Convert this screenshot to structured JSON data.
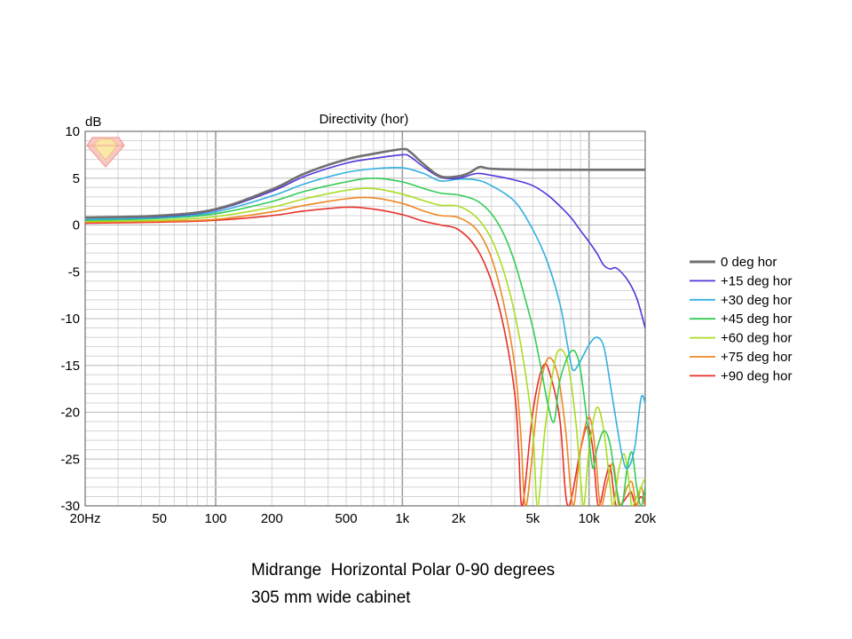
{
  "chart_data": {
    "type": "line",
    "title": "Directivity (hor)",
    "ylabel": "dB",
    "xscale": "log",
    "xlim": [
      20,
      20000
    ],
    "ylim": [
      -30,
      10
    ],
    "grid": true,
    "legend_position": "right",
    "x_ticks": [
      {
        "value": 20,
        "label": "20Hz"
      },
      {
        "value": 50,
        "label": "50"
      },
      {
        "value": 100,
        "label": "100"
      },
      {
        "value": 200,
        "label": "200"
      },
      {
        "value": 500,
        "label": "500"
      },
      {
        "value": 1000,
        "label": "1k"
      },
      {
        "value": 2000,
        "label": "2k"
      },
      {
        "value": 5000,
        "label": "5k"
      },
      {
        "value": 10000,
        "label": "10k"
      },
      {
        "value": 20000,
        "label": "20k"
      }
    ],
    "y_ticks": [
      10,
      5,
      0,
      -5,
      -10,
      -15,
      -20,
      -25,
      -30
    ],
    "series": [
      {
        "name": "0 deg hor",
        "color": "#707070",
        "points": [
          [
            20,
            0.8
          ],
          [
            50,
            1.0
          ],
          [
            100,
            1.7
          ],
          [
            200,
            3.8
          ],
          [
            300,
            5.5
          ],
          [
            500,
            7.0
          ],
          [
            700,
            7.6
          ],
          [
            1000,
            8.1
          ],
          [
            1100,
            7.8
          ],
          [
            1300,
            6.5
          ],
          [
            1600,
            5.2
          ],
          [
            2000,
            5.2
          ],
          [
            2300,
            5.6
          ],
          [
            2600,
            6.2
          ],
          [
            3000,
            6.0
          ],
          [
            5000,
            5.9
          ],
          [
            10000,
            5.9
          ],
          [
            20000,
            5.9
          ]
        ]
      },
      {
        "name": "+15 deg hor",
        "color": "#5533dd",
        "points": [
          [
            20,
            0.8
          ],
          [
            50,
            0.9
          ],
          [
            100,
            1.6
          ],
          [
            200,
            3.6
          ],
          [
            300,
            5.2
          ],
          [
            500,
            6.6
          ],
          [
            700,
            7.1
          ],
          [
            1000,
            7.5
          ],
          [
            1100,
            7.3
          ],
          [
            1300,
            6.2
          ],
          [
            1600,
            5.1
          ],
          [
            2000,
            5.0
          ],
          [
            2500,
            5.5
          ],
          [
            3000,
            5.3
          ],
          [
            4000,
            4.8
          ],
          [
            5000,
            4.2
          ],
          [
            6000,
            3.2
          ],
          [
            7000,
            2.0
          ],
          [
            8000,
            0.8
          ],
          [
            9000,
            -0.6
          ],
          [
            10000,
            -1.8
          ],
          [
            11000,
            -3.0
          ],
          [
            12000,
            -4.3
          ],
          [
            13000,
            -4.7
          ],
          [
            14000,
            -4.6
          ],
          [
            16000,
            -5.8
          ],
          [
            18000,
            -7.8
          ],
          [
            20000,
            -11.0
          ]
        ]
      },
      {
        "name": "+30 deg hor",
        "color": "#33b0e0",
        "points": [
          [
            20,
            0.6
          ],
          [
            50,
            0.8
          ],
          [
            100,
            1.4
          ],
          [
            200,
            3.1
          ],
          [
            300,
            4.4
          ],
          [
            500,
            5.6
          ],
          [
            700,
            6.0
          ],
          [
            1000,
            6.1
          ],
          [
            1300,
            5.5
          ],
          [
            1600,
            4.7
          ],
          [
            2000,
            4.9
          ],
          [
            2500,
            4.8
          ],
          [
            3000,
            4.2
          ],
          [
            4000,
            2.5
          ],
          [
            5000,
            -0.5
          ],
          [
            6000,
            -4.0
          ],
          [
            7000,
            -8.5
          ],
          [
            7700,
            -13.0
          ],
          [
            8200,
            -15.5
          ],
          [
            9000,
            -14.5
          ],
          [
            10000,
            -12.8
          ],
          [
            11000,
            -12.0
          ],
          [
            12000,
            -13.0
          ],
          [
            13000,
            -17.0
          ],
          [
            14000,
            -21.0
          ],
          [
            15000,
            -24.5
          ],
          [
            16000,
            -26.0
          ],
          [
            17500,
            -24.0
          ],
          [
            19000,
            -18.5
          ],
          [
            20000,
            -19.0
          ]
        ]
      },
      {
        "name": "+45 deg hor",
        "color": "#33cc55",
        "points": [
          [
            20,
            0.5
          ],
          [
            50,
            0.7
          ],
          [
            100,
            1.2
          ],
          [
            200,
            2.5
          ],
          [
            300,
            3.6
          ],
          [
            500,
            4.6
          ],
          [
            700,
            5.0
          ],
          [
            1000,
            4.6
          ],
          [
            1300,
            3.9
          ],
          [
            1600,
            3.4
          ],
          [
            2000,
            3.2
          ],
          [
            2500,
            2.6
          ],
          [
            3000,
            1.2
          ],
          [
            3500,
            -1.0
          ],
          [
            4000,
            -4.0
          ],
          [
            4500,
            -7.5
          ],
          [
            5000,
            -11.0
          ],
          [
            5500,
            -15.0
          ],
          [
            6000,
            -19.0
          ],
          [
            6500,
            -21.0
          ],
          [
            7000,
            -16.5
          ],
          [
            8000,
            -13.5
          ],
          [
            8800,
            -14.5
          ],
          [
            9500,
            -19.0
          ],
          [
            10000,
            -23.0
          ],
          [
            10500,
            -26.0
          ],
          [
            11000,
            -24.0
          ],
          [
            12000,
            -22.0
          ],
          [
            13000,
            -23.5
          ],
          [
            14000,
            -28.0
          ],
          [
            15000,
            -30.0
          ],
          [
            16000,
            -26.0
          ],
          [
            17000,
            -24.3
          ],
          [
            18000,
            -28.0
          ],
          [
            19000,
            -30.0
          ],
          [
            20000,
            -28.0
          ]
        ]
      },
      {
        "name": "+60 deg hor",
        "color": "#aadd22",
        "points": [
          [
            20,
            0.4
          ],
          [
            50,
            0.5
          ],
          [
            100,
            0.9
          ],
          [
            200,
            1.9
          ],
          [
            300,
            2.8
          ],
          [
            500,
            3.7
          ],
          [
            700,
            3.9
          ],
          [
            1000,
            3.3
          ],
          [
            1300,
            2.6
          ],
          [
            1600,
            2.1
          ],
          [
            2000,
            2.0
          ],
          [
            2500,
            0.8
          ],
          [
            3000,
            -1.5
          ],
          [
            3500,
            -5.0
          ],
          [
            4000,
            -9.5
          ],
          [
            4500,
            -15.0
          ],
          [
            5000,
            -22.0
          ],
          [
            5300,
            -30.0
          ],
          [
            5800,
            -22.0
          ],
          [
            6500,
            -15.0
          ],
          [
            7000,
            -13.3
          ],
          [
            7700,
            -14.8
          ],
          [
            8500,
            -21.0
          ],
          [
            9000,
            -27.0
          ],
          [
            9400,
            -30.0
          ],
          [
            10000,
            -24.0
          ],
          [
            11000,
            -19.5
          ],
          [
            12000,
            -22.0
          ],
          [
            13000,
            -28.0
          ],
          [
            13500,
            -30.0
          ],
          [
            14500,
            -26.0
          ],
          [
            15500,
            -24.5
          ],
          [
            16500,
            -28.0
          ],
          [
            17000,
            -30.0
          ],
          [
            18500,
            -28.5
          ],
          [
            20000,
            -27.0
          ]
        ]
      },
      {
        "name": "+75 deg hor",
        "color": "#ee8822",
        "points": [
          [
            20,
            0.3
          ],
          [
            50,
            0.4
          ],
          [
            100,
            0.6
          ],
          [
            200,
            1.4
          ],
          [
            300,
            2.1
          ],
          [
            500,
            2.8
          ],
          [
            700,
            2.9
          ],
          [
            1000,
            2.3
          ],
          [
            1300,
            1.5
          ],
          [
            1600,
            1.0
          ],
          [
            2000,
            0.8
          ],
          [
            2500,
            -0.5
          ],
          [
            3000,
            -3.5
          ],
          [
            3500,
            -8.5
          ],
          [
            4000,
            -15.0
          ],
          [
            4300,
            -22.0
          ],
          [
            4600,
            -30.0
          ],
          [
            5300,
            -19.0
          ],
          [
            6000,
            -14.3
          ],
          [
            6800,
            -16.0
          ],
          [
            7500,
            -22.0
          ],
          [
            8200,
            -30.0
          ],
          [
            9000,
            -24.0
          ],
          [
            10000,
            -20.5
          ],
          [
            10800,
            -24.0
          ],
          [
            11500,
            -30.0
          ],
          [
            12500,
            -27.5
          ],
          [
            13500,
            -25.5
          ],
          [
            14500,
            -30.0
          ],
          [
            16000,
            -28.0
          ],
          [
            17000,
            -27.5
          ],
          [
            18000,
            -30.0
          ],
          [
            19000,
            -28.0
          ],
          [
            20000,
            -30.0
          ]
        ]
      },
      {
        "name": "+90 deg hor",
        "color": "#e8302a",
        "points": [
          [
            20,
            0.2
          ],
          [
            50,
            0.3
          ],
          [
            100,
            0.5
          ],
          [
            200,
            1.0
          ],
          [
            300,
            1.5
          ],
          [
            500,
            1.9
          ],
          [
            700,
            1.7
          ],
          [
            1000,
            1.1
          ],
          [
            1300,
            0.4
          ],
          [
            1600,
            0.0
          ],
          [
            2000,
            -0.5
          ],
          [
            2500,
            -2.5
          ],
          [
            3000,
            -6.0
          ],
          [
            3500,
            -11.0
          ],
          [
            4000,
            -18.0
          ],
          [
            4200,
            -24.0
          ],
          [
            4400,
            -30.0
          ],
          [
            5000,
            -20.0
          ],
          [
            5700,
            -15.0
          ],
          [
            6300,
            -16.5
          ],
          [
            7000,
            -21.0
          ],
          [
            7700,
            -30.0
          ],
          [
            9000,
            -24.0
          ],
          [
            9800,
            -21.5
          ],
          [
            10500,
            -24.0
          ],
          [
            11200,
            -30.0
          ],
          [
            12300,
            -27.0
          ],
          [
            13000,
            -25.8
          ],
          [
            14000,
            -30.0
          ],
          [
            16000,
            -29.0
          ],
          [
            16800,
            -28.5
          ],
          [
            17800,
            -30.0
          ],
          [
            19000,
            -29.0
          ],
          [
            20000,
            -30.0
          ]
        ]
      }
    ]
  },
  "caption": {
    "line1": "Midrange  Horizontal Polar 0-90 degrees",
    "line2": "305 mm wide cabinet"
  },
  "colors": {
    "grid_major": "#9a9a9a",
    "grid_minor": "#d4d4d4",
    "plot_border": "#555555"
  },
  "icons": {
    "watermark": "gem-logo-icon"
  }
}
